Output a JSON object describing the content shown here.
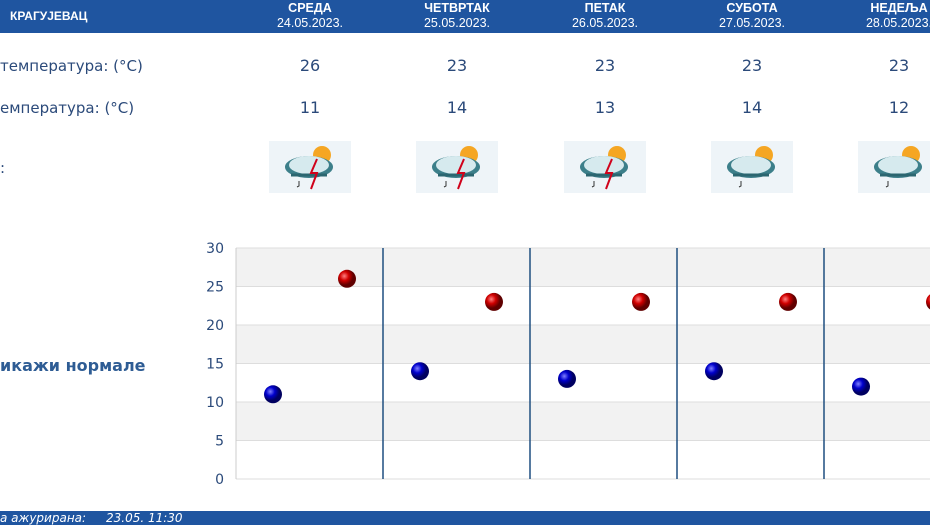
{
  "header": {
    "city": "КРАГУЈЕВАЦ",
    "days": [
      {
        "name": "СРЕДА",
        "date": "24.05.2023."
      },
      {
        "name": "ЧЕТВРТАК",
        "date": "25.05.2023."
      },
      {
        "name": "ПЕТАК",
        "date": "26.05.2023."
      },
      {
        "name": "СУБОТА",
        "date": "27.05.2023."
      },
      {
        "name": "НЕДЕЉА",
        "date": "28.05.2023."
      }
    ]
  },
  "rows": {
    "max_label": "температура: (°C)",
    "min_label": "емпература: (°C)",
    "icon_label": ":",
    "max": [
      "26",
      "23",
      "23",
      "23",
      "23"
    ],
    "min": [
      "11",
      "14",
      "13",
      "14",
      "12"
    ],
    "icons": [
      "sun-cloud-thunderstorm",
      "sun-cloud-thunderstorm",
      "sun-cloud-thunderstorm",
      "sun-cloud-rain",
      "sun-cloud-rain"
    ]
  },
  "normals_label": "икажи нормале",
  "footer": {
    "label": "а ажурирана:",
    "time": "23.05. 11:30"
  },
  "colors": {
    "header": "#1f55a0",
    "max_point": "#cc0000",
    "min_point": "#0000cc"
  },
  "chart_data": {
    "type": "scatter",
    "ylim": [
      0,
      30
    ],
    "yticks": [
      "0",
      "5",
      "10",
      "15",
      "20",
      "25",
      "30"
    ],
    "categories": [
      "24.05.2023.",
      "25.05.2023.",
      "26.05.2023.",
      "27.05.2023.",
      "28.05.2023."
    ],
    "series": [
      {
        "values": [
          11,
          14,
          13,
          14,
          12
        ],
        "color": "#0000cc"
      },
      {
        "values": [
          26,
          23,
          23,
          23,
          23
        ],
        "color": "#cc0000"
      }
    ]
  }
}
